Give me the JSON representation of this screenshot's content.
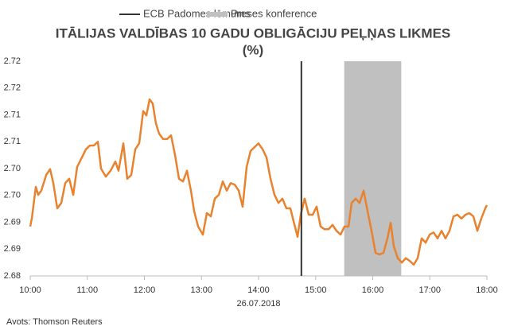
{
  "chart_data": {
    "type": "line",
    "title": [
      "ITĀLIJAS VALDĪBAS 10 GADU OBLIGĀCIJU PEĻŅAS LIKMES",
      "(%)"
    ],
    "xlabel": "26.07.2018",
    "source": "Avots: Thomson Reuters",
    "color": "#e8822e",
    "x": [
      10.0,
      10.028,
      10.098,
      10.139,
      10.195,
      10.279,
      10.348,
      10.404,
      10.474,
      10.544,
      10.613,
      10.683,
      10.753,
      10.822,
      10.892,
      10.976,
      11.045,
      11.115,
      11.185,
      11.24,
      11.324,
      11.408,
      11.491,
      11.547,
      11.631,
      11.7,
      11.77,
      11.84,
      11.909,
      11.979,
      12.035,
      12.091,
      12.146,
      12.202,
      12.258,
      12.328,
      12.397,
      12.467,
      12.537,
      12.606,
      12.676,
      12.746,
      12.815,
      12.871,
      12.941,
      13.024,
      13.094,
      13.164,
      13.233,
      13.303,
      13.373,
      13.443,
      13.512,
      13.582,
      13.652,
      13.721,
      13.791,
      13.861,
      13.93,
      14.0,
      14.07,
      14.139,
      14.209,
      14.279,
      14.348,
      14.418,
      14.488,
      14.557,
      14.627,
      14.683,
      14.739,
      14.808,
      14.878,
      14.948,
      15.017,
      15.087,
      15.157,
      15.226,
      15.296,
      15.366,
      15.436,
      15.505,
      15.575,
      15.631,
      15.7,
      15.77,
      15.84,
      15.909,
      15.979,
      16.049,
      16.118,
      16.188,
      16.258,
      16.314,
      16.369,
      16.439,
      16.509,
      16.578,
      16.648,
      16.718,
      16.787,
      16.857,
      16.927,
      16.997,
      17.066,
      17.136,
      17.206,
      17.275,
      17.345,
      17.415,
      17.484,
      17.554,
      17.624,
      17.693,
      17.763,
      17.833,
      17.902,
      17.972,
      18.0
    ],
    "values": [
      2.6892,
      2.6907,
      2.6966,
      2.6951,
      2.6959,
      2.6988,
      2.6999,
      2.6973,
      2.6926,
      2.6936,
      2.6973,
      2.6981,
      2.6951,
      2.7003,
      2.7018,
      2.7036,
      2.7043,
      2.7043,
      2.705,
      2.7,
      2.6985,
      2.6996,
      2.7013,
      2.6996,
      2.7047,
      2.6981,
      2.6988,
      2.7036,
      2.7047,
      2.7107,
      2.7099,
      2.7129,
      2.7121,
      2.7084,
      2.7065,
      2.7055,
      2.7055,
      2.7062,
      2.7025,
      2.6981,
      2.6976,
      2.6996,
      2.6959,
      2.6921,
      2.6892,
      2.6877,
      2.6917,
      2.6911,
      2.6944,
      2.6951,
      2.6976,
      2.6959,
      2.6973,
      2.697,
      2.6959,
      2.6929,
      2.7003,
      2.7033,
      2.704,
      2.7047,
      2.7036,
      2.7021,
      2.6981,
      2.6951,
      2.6936,
      2.6944,
      2.6926,
      2.6926,
      2.6896,
      2.6873,
      2.6914,
      2.6944,
      2.6914,
      2.6914,
      2.6929,
      2.6892,
      2.6887,
      2.6887,
      2.6895,
      2.6884,
      2.6877,
      2.6892,
      2.6892,
      2.6936,
      2.6944,
      2.6936,
      2.6959,
      2.6921,
      2.6884,
      2.6843,
      2.684,
      2.6843,
      2.687,
      2.6899,
      2.6855,
      2.6833,
      2.6825,
      2.6833,
      2.6828,
      2.6821,
      2.6833,
      2.687,
      2.6862,
      2.6877,
      2.6881,
      2.687,
      2.6884,
      2.687,
      2.6884,
      2.6911,
      2.6914,
      2.6907,
      2.6914,
      2.6917,
      2.6911,
      2.6884,
      2.6907,
      2.6926,
      2.6932
    ],
    "xlim": [
      10,
      18
    ],
    "xticks": [
      {
        "value": 10,
        "label": "10:00"
      },
      {
        "value": 11,
        "label": "11:00"
      },
      {
        "value": 12,
        "label": "12:00"
      },
      {
        "value": 13,
        "label": "13:00"
      },
      {
        "value": 14,
        "label": "14:00"
      },
      {
        "value": 15,
        "label": "15:00"
      },
      {
        "value": 16,
        "label": "16:00"
      },
      {
        "value": 17,
        "label": "17:00"
      },
      {
        "value": 18,
        "label": "18:00"
      }
    ],
    "ylim": [
      2.68,
      2.72
    ],
    "yticks": [
      2.68,
      {
        "value": 2.685,
        "label": "2.69"
      },
      2.69,
      {
        "value": 2.695,
        "label": "2.70"
      },
      {
        "value": 2.7,
        "label": "2.70"
      },
      {
        "value": 2.705,
        "label": "2.71"
      },
      2.71,
      {
        "value": 2.715,
        "label": "2.72"
      },
      2.72
    ],
    "grid": false,
    "decision": {
      "name": "ECB Padomes lēmums",
      "x": 14.75,
      "color": "#333333"
    },
    "press": {
      "name": "Preses konference",
      "x": [
        15.5,
        16.5
      ],
      "color": "#c0c0c0"
    }
  }
}
